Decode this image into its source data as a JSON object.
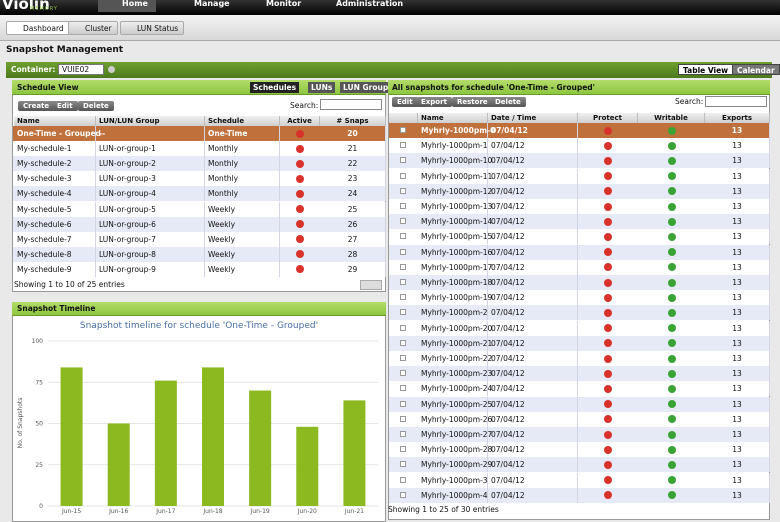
{
  "nav": {
    "logo": "Violin",
    "logo_sub": "MEMORY",
    "tabs": [
      "Home",
      "Manage",
      "Monitor",
      "Administration"
    ]
  },
  "subtabs": [
    "Dashboard",
    "Cluster",
    "LUN Status"
  ],
  "page_title": "Snapshot Management",
  "container": {
    "label": "Container:",
    "value": "VUIE02",
    "views": [
      "Table View",
      "Calendar"
    ]
  },
  "schedule_view": {
    "title": "Schedule View",
    "tabs": [
      "Schedules",
      "LUNs",
      "LUN Groups"
    ],
    "buttons": [
      "Create",
      "Edit",
      "Delete"
    ],
    "search": "Search:",
    "columns": [
      "Name",
      "LUN/LUN Group",
      "Schedule",
      "Active",
      "# Snaps"
    ],
    "rows": [
      [
        "One-Time - Grouped",
        "--",
        "One-Time",
        20
      ],
      [
        "My-schedule-1",
        "LUN-or-group-1",
        "Monthly",
        21
      ],
      [
        "My-schedule-2",
        "LUN-or-group-2",
        "Monthly",
        22
      ],
      [
        "My-schedule-3",
        "LUN-or-group-3",
        "Monthly",
        23
      ],
      [
        "My-schedule-4",
        "LUN-or-group-4",
        "Monthly",
        24
      ],
      [
        "My-schedule-5",
        "LUN-or-group-5",
        "Weekly",
        25
      ],
      [
        "My-schedule-6",
        "LUN-or-group-6",
        "Weekly",
        26
      ],
      [
        "My-schedule-7",
        "LUN-or-group-7",
        "Weekly",
        27
      ],
      [
        "My-schedule-8",
        "LUN-or-group-8",
        "Weekly",
        28
      ],
      [
        "My-schedule-9",
        "LUN-or-group-9",
        "Weekly",
        29
      ]
    ],
    "footer": "Showing 1 to 10 of 25 entries"
  },
  "snapshots": {
    "title": "All snapshots for schedule 'One-Time - Grouped'",
    "buttons": [
      "Edit",
      "Export",
      "Restore",
      "Delete"
    ],
    "search": "Search:",
    "columns": [
      "Name",
      "Date / Time",
      "Protect",
      "Writable",
      "Exports"
    ],
    "rows": [
      [
        "Myhrly-1000pm-0",
        "07/04/12",
        13
      ],
      [
        "Myhrly-1000pm-1",
        "07/04/12",
        13
      ],
      [
        "Myhrly-1000pm-10",
        "07/04/12",
        13
      ],
      [
        "Myhrly-1000pm-11",
        "07/04/12",
        13
      ],
      [
        "Myhrly-1000pm-12",
        "07/04/12",
        13
      ],
      [
        "Myhrly-1000pm-13",
        "07/04/12",
        13
      ],
      [
        "Myhrly-1000pm-14",
        "07/04/12",
        13
      ],
      [
        "Myhrly-1000pm-15",
        "07/04/12",
        13
      ],
      [
        "Myhrly-1000pm-16",
        "07/04/12",
        13
      ],
      [
        "Myhrly-1000pm-17",
        "07/04/12",
        13
      ],
      [
        "Myhrly-1000pm-18",
        "07/04/12",
        13
      ],
      [
        "Myhrly-1000pm-19",
        "07/04/12",
        13
      ],
      [
        "Myhrly-1000pm-2",
        "07/04/12",
        13
      ],
      [
        "Myhrly-1000pm-20",
        "07/04/12",
        13
      ],
      [
        "Myhrly-1000pm-21",
        "07/04/12",
        13
      ],
      [
        "Myhrly-1000pm-22",
        "07/04/12",
        13
      ],
      [
        "Myhrly-1000pm-23",
        "07/04/12",
        13
      ],
      [
        "Myhrly-1000pm-24",
        "07/04/12",
        13
      ],
      [
        "Myhrly-1000pm-25",
        "07/04/12",
        13
      ],
      [
        "Myhrly-1000pm-26",
        "07/04/12",
        13
      ],
      [
        "Myhrly-1000pm-27",
        "07/04/12",
        13
      ],
      [
        "Myhrly-1000pm-28",
        "07/04/12",
        13
      ],
      [
        "Myhrly-1000pm-29",
        "07/04/12",
        13
      ],
      [
        "Myhrly-1000pm-3",
        "07/04/12",
        13
      ],
      [
        "Myhrly-1000pm-4",
        "07/04/12",
        13
      ]
    ],
    "footer": "Showing 1 to 25 of 30 entries"
  },
  "timeline": {
    "title": "Snapshot Timeline"
  },
  "chart_data": {
    "type": "bar",
    "title": "Snapshot timeline for schedule 'One-Time - Grouped'",
    "y_label": "No. of Snapshots",
    "categories": [
      "Jun-15",
      "Jun-16",
      "Jun-17",
      "Jun-18",
      "Jun-19",
      "Jun-20",
      "Jun-21"
    ],
    "values": [
      84,
      50,
      76,
      84,
      70,
      48,
      64
    ],
    "color": "#8cb820",
    "ylim": [
      0,
      100
    ],
    "yticks": [
      0,
      25,
      50,
      75,
      100
    ],
    "grid": true
  }
}
